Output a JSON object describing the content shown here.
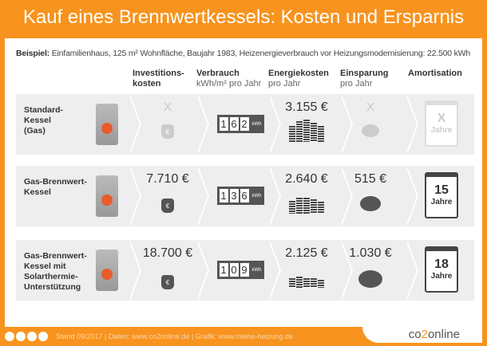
{
  "title": "Kauf eines Brennwertkessels: Kosten und Ersparnis",
  "example": {
    "label": "Beispiel:",
    "text": "Einfamilienhaus, 125 m² Wohnfläche, Baujahr 1983, Heizenergieverbrauch vor Heizungsmodernisierung: 22.500 kWh"
  },
  "headers": [
    {
      "title": "Investitions-",
      "title2": "kosten",
      "sub": ""
    },
    {
      "title": "Verbrauch",
      "title2": "",
      "sub": "kWh/m² pro Jahr"
    },
    {
      "title": "Energiekosten",
      "title2": "",
      "sub": "pro Jahr"
    },
    {
      "title": "Einsparung",
      "title2": "",
      "sub": "pro Jahr"
    },
    {
      "title": "Amortisation",
      "title2": "",
      "sub": ""
    }
  ],
  "meter_unit": "kWh",
  "rows": [
    {
      "label": [
        "Standard-",
        "Kessel",
        "(Gas)"
      ],
      "investment": "X",
      "consumption": [
        "1",
        "6",
        "2"
      ],
      "energy_cost": "3.155 €",
      "savings": "X",
      "amortization": "X",
      "years": "Jahre",
      "muted": true
    },
    {
      "label": [
        "Gas-Brennwert-",
        "Kessel",
        ""
      ],
      "investment": "7.710 €",
      "consumption": [
        "1",
        "3",
        "6"
      ],
      "energy_cost": "2.640 €",
      "savings": "515 €",
      "amortization": "15",
      "years": "Jahre",
      "muted": false
    },
    {
      "label": [
        "Gas-Brennwert-",
        "Kessel mit",
        "Solarthermie-Unterstützung"
      ],
      "investment": "18.700 €",
      "consumption": [
        "1",
        "0",
        "9"
      ],
      "energy_cost": "2.125 €",
      "savings": "1.030 €",
      "amortization": "18",
      "years": "Jahre",
      "muted": false
    }
  ],
  "footer": {
    "text": "Stand 09/2017  |  Daten: www.co2online.de  |  Grafik: www.meine-heizung.de",
    "logo_a": "co",
    "logo_b": "2",
    "logo_c": "online"
  },
  "colors": {
    "accent": "#f7931e",
    "dark": "#444444",
    "flame": "#e85b2a"
  }
}
